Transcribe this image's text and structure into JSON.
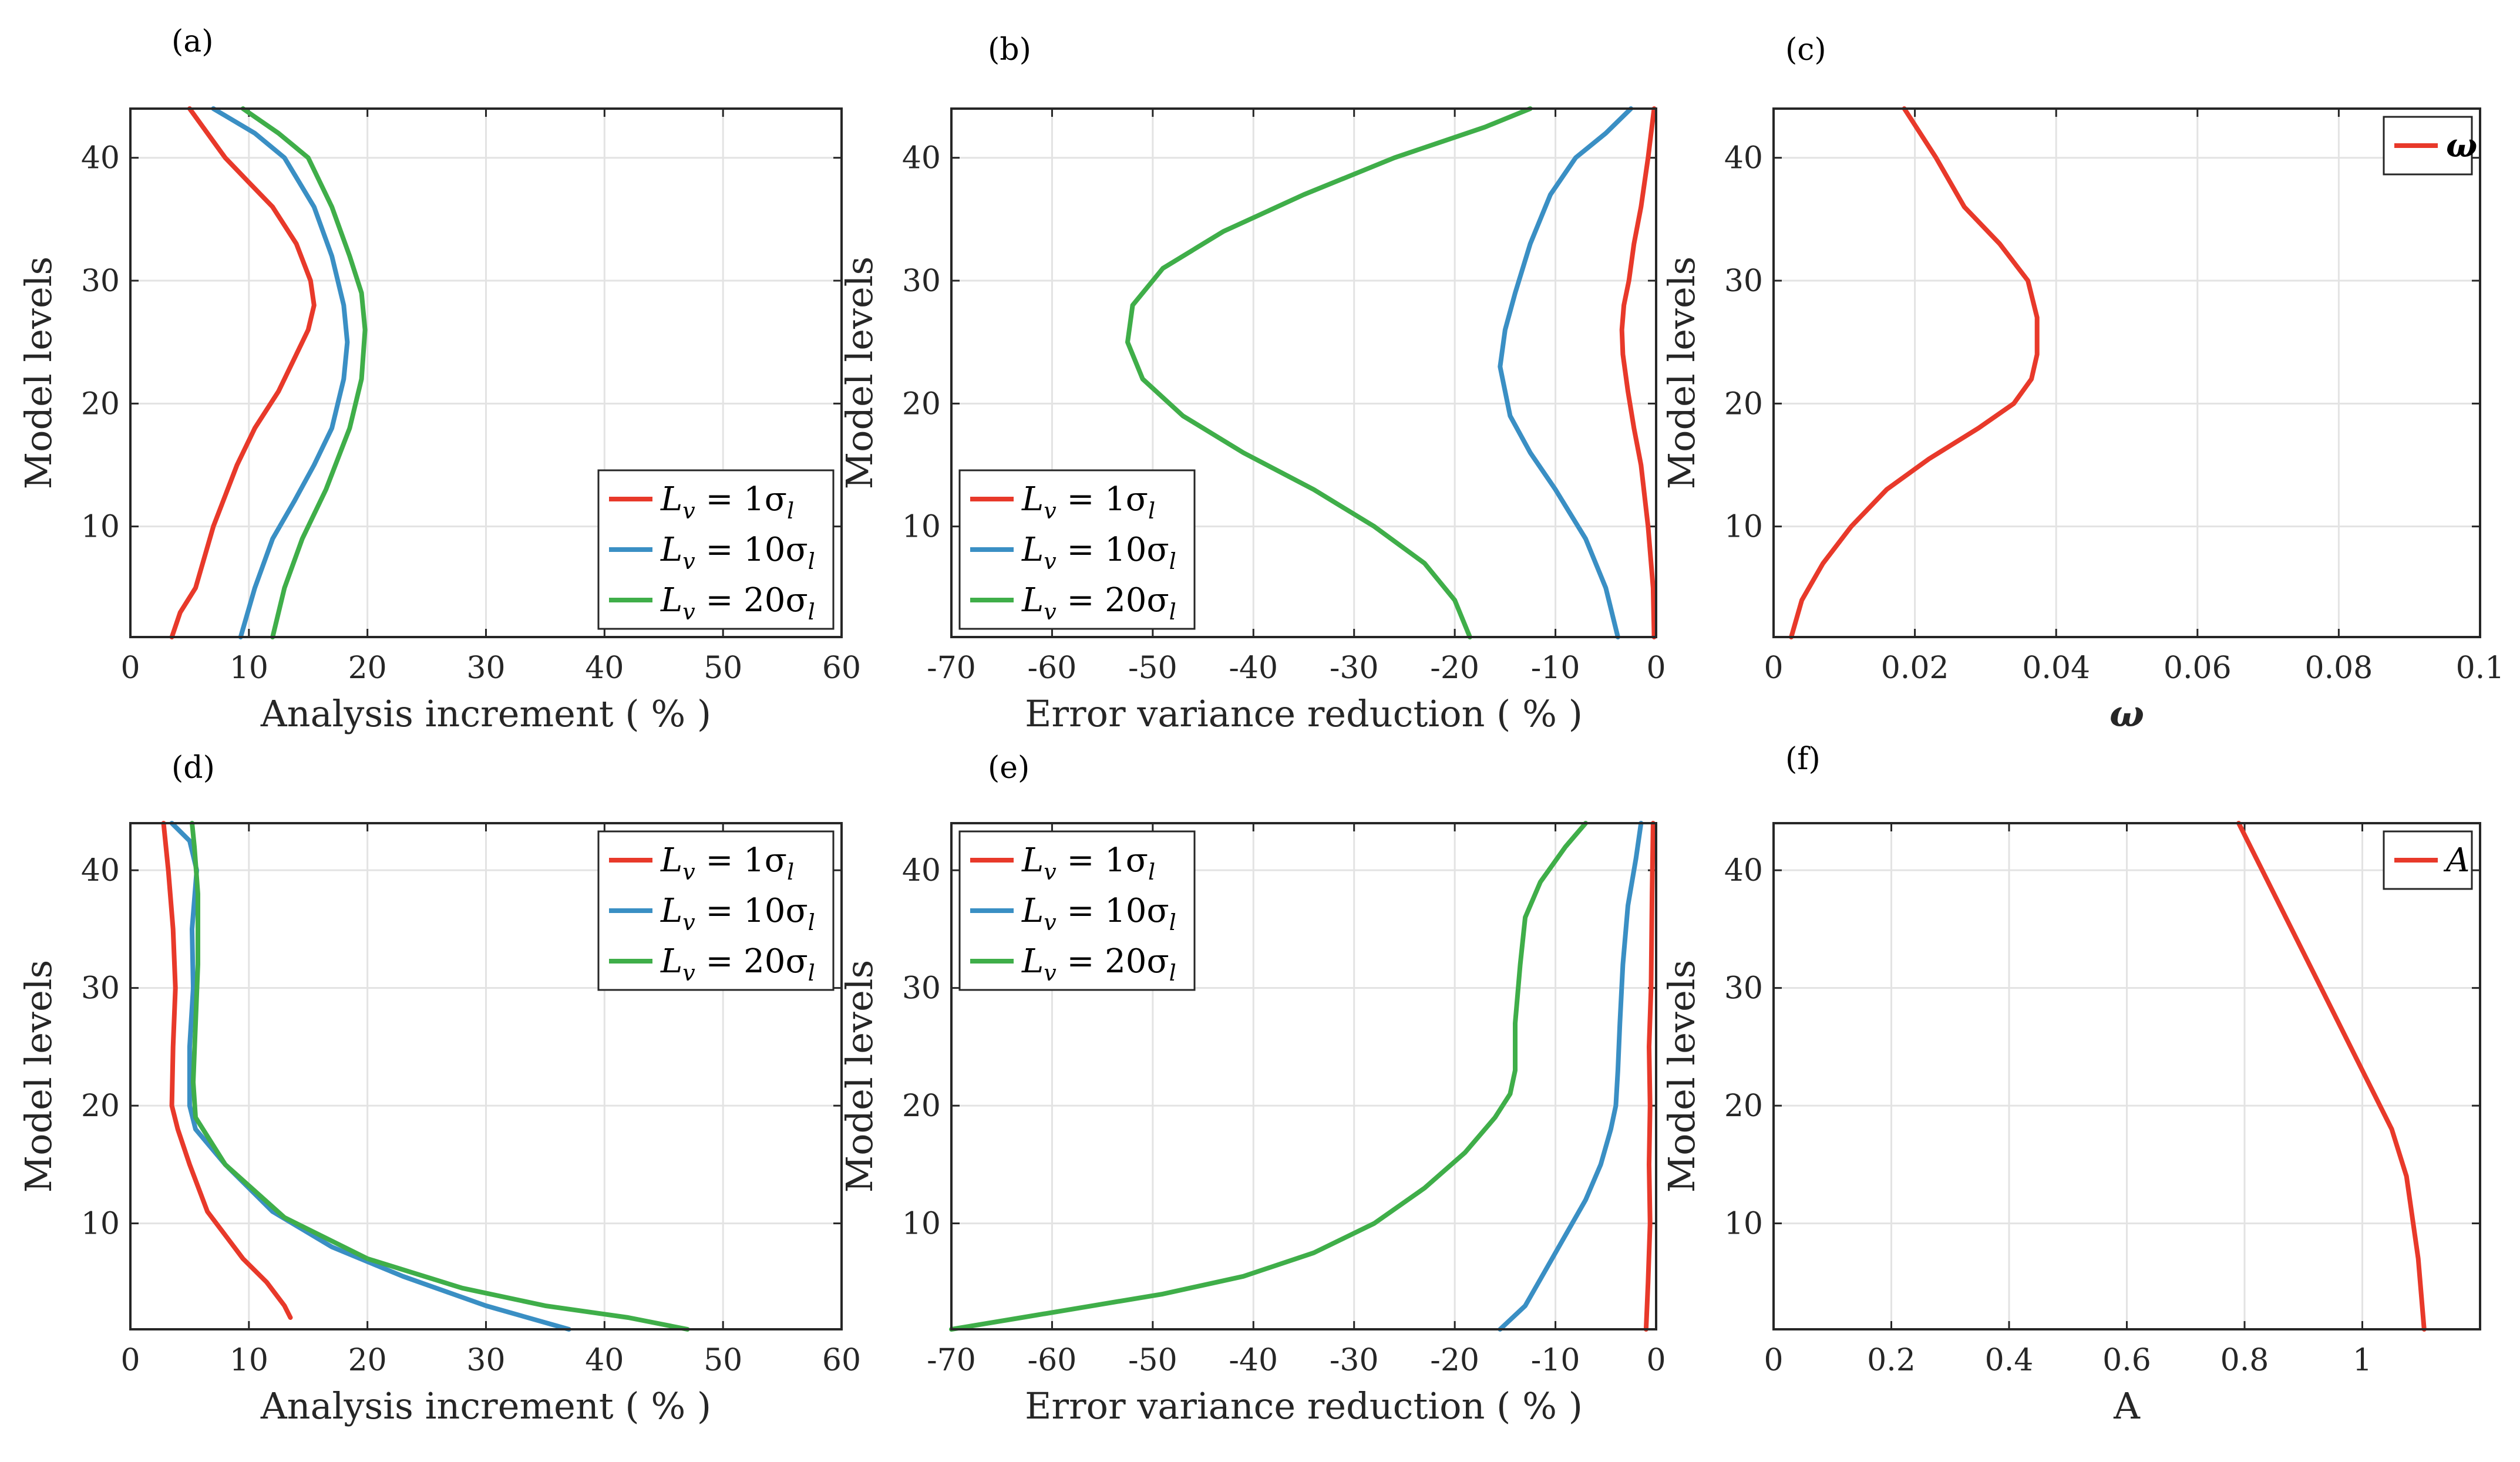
{
  "colors": {
    "red": "#e8392a",
    "blue": "#3a8fc4",
    "green": "#3fae49"
  },
  "chart_data": [
    {
      "id": "a",
      "panel_label": "(a)",
      "type": "line",
      "xlabel": "Analysis increment ( % )",
      "ylabel": "Model levels",
      "xlim": [
        0,
        60
      ],
      "ylim": [
        1,
        44
      ],
      "xticks": [
        0,
        10,
        20,
        30,
        40,
        50,
        60
      ],
      "xtick_labels": [
        "0",
        "10",
        "20",
        "30",
        "40",
        "50",
        "60"
      ],
      "yticks": [
        10,
        20,
        30,
        40
      ],
      "ytick_labels": [
        "10",
        "20",
        "30",
        "40"
      ],
      "legend_position": "bottom-right",
      "series": [
        {
          "name": "L_v = 1σ_l",
          "legend_main": "L",
          "legend_sub": "v",
          "legend_rest": " = 1σ",
          "legend_sub2": "l",
          "color_key": "red",
          "x": [
            3.5,
            4.2,
            5.5,
            7,
            9,
            10.5,
            12.5,
            14,
            15,
            15.5,
            15.2,
            14,
            12,
            10,
            8,
            6.5,
            5
          ],
          "y": [
            1,
            3,
            5,
            10,
            15,
            18,
            21,
            24,
            26,
            28,
            30,
            33,
            36,
            38,
            40,
            42,
            44
          ]
        },
        {
          "name": "L_v = 10σ_l",
          "legend_main": "L",
          "legend_sub": "v",
          "legend_rest": " = 10σ",
          "legend_sub2": "l",
          "color_key": "blue",
          "x": [
            9.3,
            10.5,
            12,
            13.8,
            15.5,
            17,
            18,
            18.3,
            18,
            17,
            15.5,
            13,
            10.5,
            7
          ],
          "y": [
            1,
            5,
            9,
            12,
            15,
            18,
            22,
            25,
            28,
            32,
            36,
            40,
            42,
            44
          ]
        },
        {
          "name": "L_v = 20σ_l",
          "legend_main": "L",
          "legend_sub": "v",
          "legend_rest": " = 20σ",
          "legend_sub2": "l",
          "color_key": "green",
          "x": [
            12,
            13,
            14.5,
            16.5,
            18.5,
            19.5,
            19.8,
            19.5,
            18.5,
            17,
            15,
            12.5,
            9.5
          ],
          "y": [
            1,
            5,
            9,
            13,
            18,
            22,
            26,
            29,
            32,
            36,
            40,
            42,
            44
          ]
        }
      ]
    },
    {
      "id": "b",
      "panel_label": "(b)",
      "type": "line",
      "xlabel": "Error variance reduction ( % )",
      "ylabel": "Model levels",
      "xlim": [
        -70,
        0
      ],
      "ylim": [
        1,
        44
      ],
      "xticks": [
        -70,
        -60,
        -50,
        -40,
        -30,
        -20,
        -10,
        0
      ],
      "xtick_labels": [
        "-70",
        "-60",
        "-50",
        "-40",
        "-30",
        "-20",
        "-10",
        "0"
      ],
      "yticks": [
        10,
        20,
        30,
        40
      ],
      "ytick_labels": [
        "10",
        "20",
        "30",
        "40"
      ],
      "legend_position": "bottom-left",
      "series": [
        {
          "name": "L_v = 1σ_l",
          "legend_main": "L",
          "legend_sub": "v",
          "legend_rest": " = 1σ",
          "legend_sub2": "l",
          "color_key": "red",
          "x": [
            -0.2,
            -0.3,
            -0.8,
            -1.5,
            -2.2,
            -2.8,
            -3.3,
            -3.4,
            -3.2,
            -2.7,
            -2.2,
            -1.5,
            -0.8,
            -0.2
          ],
          "y": [
            1,
            5,
            10,
            15,
            18,
            21,
            24,
            26,
            28,
            30,
            33,
            36,
            40,
            44
          ]
        },
        {
          "name": "L_v = 10σ_l",
          "legend_main": "L",
          "legend_sub": "v",
          "legend_rest": " = 10σ",
          "legend_sub2": "l",
          "color_key": "blue",
          "x": [
            -3.8,
            -5,
            -7,
            -10,
            -12.5,
            -14.5,
            -15.5,
            -15,
            -14,
            -12.5,
            -10.5,
            -8,
            -5,
            -2.5
          ],
          "y": [
            1,
            5,
            9,
            13,
            16,
            19,
            23,
            26,
            29,
            33,
            37,
            40,
            42,
            44
          ]
        },
        {
          "name": "L_v = 20σ_l",
          "legend_main": "L",
          "legend_sub": "v",
          "legend_rest": " = 20σ",
          "legend_sub2": "l",
          "color_key": "green",
          "x": [
            -18.5,
            -20,
            -23,
            -28,
            -34,
            -41,
            -47,
            -51,
            -52.5,
            -52,
            -49,
            -43,
            -35,
            -26,
            -17,
            -12.5
          ],
          "y": [
            1,
            4,
            7,
            10,
            13,
            16,
            19,
            22,
            25,
            28,
            31,
            34,
            37,
            40,
            42.5,
            44
          ]
        }
      ]
    },
    {
      "id": "c",
      "panel_label": "(c)",
      "type": "line",
      "xlabel": "ω",
      "ylabel": "Model levels",
      "xlim": [
        0,
        0.1
      ],
      "ylim": [
        1,
        44
      ],
      "xticks": [
        0,
        0.02,
        0.04,
        0.06,
        0.08,
        0.1
      ],
      "xtick_labels": [
        "0",
        "0.02",
        "0.04",
        "0.06",
        "0.08",
        "0.1"
      ],
      "yticks": [
        10,
        20,
        30,
        40
      ],
      "ytick_labels": [
        "10",
        "20",
        "30",
        "40"
      ],
      "legend_position": "top-right",
      "series": [
        {
          "name": "ω",
          "legend_main": "ω",
          "legend_sub": "",
          "legend_rest": "",
          "legend_sub2": "",
          "color_key": "red",
          "x": [
            0.0025,
            0.004,
            0.007,
            0.011,
            0.016,
            0.022,
            0.029,
            0.034,
            0.0365,
            0.0373,
            0.0373,
            0.036,
            0.032,
            0.027,
            0.023,
            0.0185
          ],
          "y": [
            1,
            4,
            7,
            10,
            13,
            15.5,
            18,
            20,
            22,
            24,
            27,
            30,
            33,
            36,
            40,
            44
          ]
        }
      ]
    },
    {
      "id": "d",
      "panel_label": "(d)",
      "type": "line",
      "xlabel": "Analysis increment ( % )",
      "ylabel": "Model levels",
      "xlim": [
        0,
        60
      ],
      "ylim": [
        1,
        44
      ],
      "xticks": [
        0,
        10,
        20,
        30,
        40,
        50,
        60
      ],
      "xtick_labels": [
        "0",
        "10",
        "20",
        "30",
        "40",
        "50",
        "60"
      ],
      "yticks": [
        10,
        20,
        30,
        40
      ],
      "ytick_labels": [
        "10",
        "20",
        "30",
        "40"
      ],
      "legend_position": "top-right",
      "series": [
        {
          "name": "L_v = 1σ_l",
          "legend_main": "L",
          "legend_sub": "v",
          "legend_rest": " = 1σ",
          "legend_sub2": "l",
          "color_key": "red",
          "x": [
            13.5,
            13,
            11.5,
            9.5,
            8,
            6.5,
            5,
            4,
            3.5,
            3.6,
            3.8,
            3.6,
            3.2,
            2.8
          ],
          "y": [
            2,
            3,
            5,
            7,
            9,
            11,
            15,
            18,
            20,
            25,
            30,
            35,
            40,
            44
          ]
        },
        {
          "name": "L_v = 10σ_l",
          "legend_main": "L",
          "legend_sub": "v",
          "legend_rest": " = 10σ",
          "legend_sub2": "l",
          "color_key": "blue",
          "x": [
            37,
            30,
            23,
            17,
            12,
            8,
            5.5,
            5,
            5,
            5.3,
            5.2,
            5.6,
            5,
            3.5
          ],
          "y": [
            1,
            3,
            5.5,
            8,
            11,
            15,
            18,
            20,
            25,
            30,
            35,
            40,
            42.5,
            44
          ]
        },
        {
          "name": "L_v = 20σ_l",
          "legend_main": "L",
          "legend_sub": "v",
          "legend_rest": " = 20σ",
          "legend_sub2": "l",
          "color_key": "green",
          "x": [
            47,
            42,
            35,
            28,
            20,
            13,
            8,
            5.5,
            5.3,
            5.5,
            5.7,
            5.7,
            5.4,
            5.2
          ],
          "y": [
            1,
            2,
            3,
            4.5,
            7,
            10.5,
            15,
            19,
            22,
            27,
            32,
            38,
            42,
            44
          ]
        }
      ]
    },
    {
      "id": "e",
      "panel_label": "(e)",
      "type": "line",
      "xlabel": "Error variance reduction ( % )",
      "ylabel": "Model levels",
      "xlim": [
        -70,
        0
      ],
      "ylim": [
        1,
        44
      ],
      "xticks": [
        -70,
        -60,
        -50,
        -40,
        -30,
        -20,
        -10,
        0
      ],
      "xtick_labels": [
        "-70",
        "-60",
        "-50",
        "-40",
        "-30",
        "-20",
        "-10",
        "0"
      ],
      "yticks": [
        10,
        20,
        30,
        40
      ],
      "ytick_labels": [
        "10",
        "20",
        "30",
        "40"
      ],
      "legend_position": "top-left",
      "series": [
        {
          "name": "L_v = 1σ_l",
          "legend_main": "L",
          "legend_sub": "v",
          "legend_rest": " = 1σ",
          "legend_sub2": "l",
          "color_key": "red",
          "x": [
            -1,
            -0.8,
            -0.6,
            -0.7,
            -0.6,
            -0.7,
            -0.5,
            -0.4,
            -0.3
          ],
          "y": [
            1,
            5,
            10,
            15,
            20,
            25,
            30,
            38,
            44
          ]
        },
        {
          "name": "L_v = 10σ_l",
          "legend_main": "L",
          "legend_sub": "v",
          "legend_rest": " = 10σ",
          "legend_sub2": "l",
          "color_key": "blue",
          "x": [
            -15.5,
            -13,
            -11,
            -9,
            -7,
            -5.5,
            -4.5,
            -4,
            -3.8,
            -3.6,
            -3.3,
            -2.8,
            -2,
            -1.5
          ],
          "y": [
            1,
            3,
            6,
            9,
            12,
            15,
            18,
            20,
            23,
            27,
            32,
            37,
            41,
            44
          ]
        },
        {
          "name": "L_v = 20σ_l",
          "legend_main": "L",
          "legend_sub": "v",
          "legend_rest": " = 20σ",
          "legend_sub2": "l",
          "color_key": "green",
          "x": [
            -70,
            -63,
            -56,
            -49,
            -41,
            -34,
            -28,
            -23,
            -19,
            -16,
            -14.5,
            -14,
            -14,
            -13.5,
            -13,
            -11.5,
            -9,
            -7
          ],
          "y": [
            1,
            2,
            3,
            4,
            5.5,
            7.5,
            10,
            13,
            16,
            19,
            21,
            23,
            27,
            32,
            36,
            39,
            42,
            44
          ]
        }
      ]
    },
    {
      "id": "f",
      "panel_label": "(f)",
      "type": "line",
      "xlabel": "A",
      "ylabel": "Model levels",
      "xlim": [
        0,
        1.2
      ],
      "ylim": [
        1,
        44
      ],
      "xticks": [
        0,
        0.2,
        0.4,
        0.6,
        0.8,
        1
      ],
      "xtick_labels": [
        "0",
        "0.2",
        "0.4",
        "0.6",
        "0.8",
        "1"
      ],
      "yticks": [
        10,
        20,
        30,
        40
      ],
      "ytick_labels": [
        "10",
        "20",
        "30",
        "40"
      ],
      "legend_position": "top-right",
      "series": [
        {
          "name": "A",
          "legend_main": "A",
          "legend_sub": "",
          "legend_rest": "",
          "legend_sub2": "",
          "color_key": "red",
          "x": [
            1.105,
            1.095,
            1.075,
            1.05,
            1.0,
            0.95,
            0.87,
            0.79
          ],
          "y": [
            1,
            7,
            14,
            18,
            23,
            28,
            36,
            44
          ]
        }
      ]
    }
  ]
}
